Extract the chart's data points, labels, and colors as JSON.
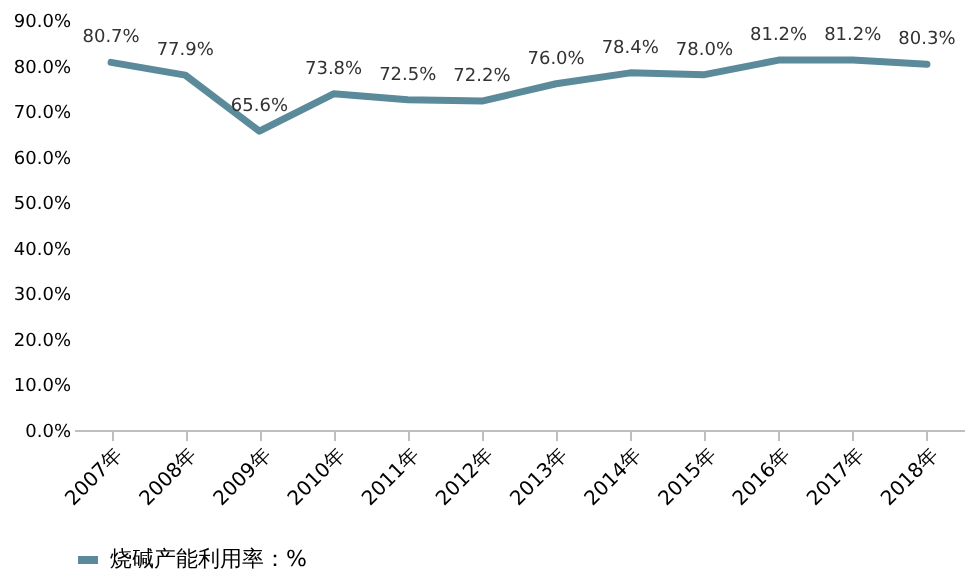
{
  "chart_data": {
    "type": "line",
    "categories": [
      "2007年",
      "2008年",
      "2009年",
      "2010年",
      "2011年",
      "2012年",
      "2013年",
      "2014年",
      "2015年",
      "2016年",
      "2017年",
      "2018年"
    ],
    "series": [
      {
        "name": "烧碱产能利用率：%",
        "color": "#5b8a9b",
        "values": [
          80.7,
          77.9,
          65.6,
          73.8,
          72.5,
          72.2,
          76.0,
          78.4,
          78.0,
          81.2,
          81.2,
          80.3
        ],
        "value_labels": [
          "80.7%",
          "77.9%",
          "65.6%",
          "73.8%",
          "72.5%",
          "72.2%",
          "76.0%",
          "78.4%",
          "78.0%",
          "81.2%",
          "81.2%",
          "80.3%"
        ]
      }
    ],
    "ylim": [
      0,
      90
    ],
    "yticks": [
      {
        "value": 0,
        "label": "0.0%"
      },
      {
        "value": 10,
        "label": "10.0%"
      },
      {
        "value": 20,
        "label": "20.0%"
      },
      {
        "value": 30,
        "label": "30.0%"
      },
      {
        "value": 40,
        "label": "40.0%"
      },
      {
        "value": 50,
        "label": "50.0%"
      },
      {
        "value": 60,
        "label": "60.0%"
      },
      {
        "value": 70,
        "label": "70.0%"
      },
      {
        "value": 80,
        "label": "80.0%"
      },
      {
        "value": 90,
        "label": "90.0%"
      }
    ],
    "grid": false,
    "legend": "bottom",
    "marker": "none",
    "line_style": "solid"
  }
}
